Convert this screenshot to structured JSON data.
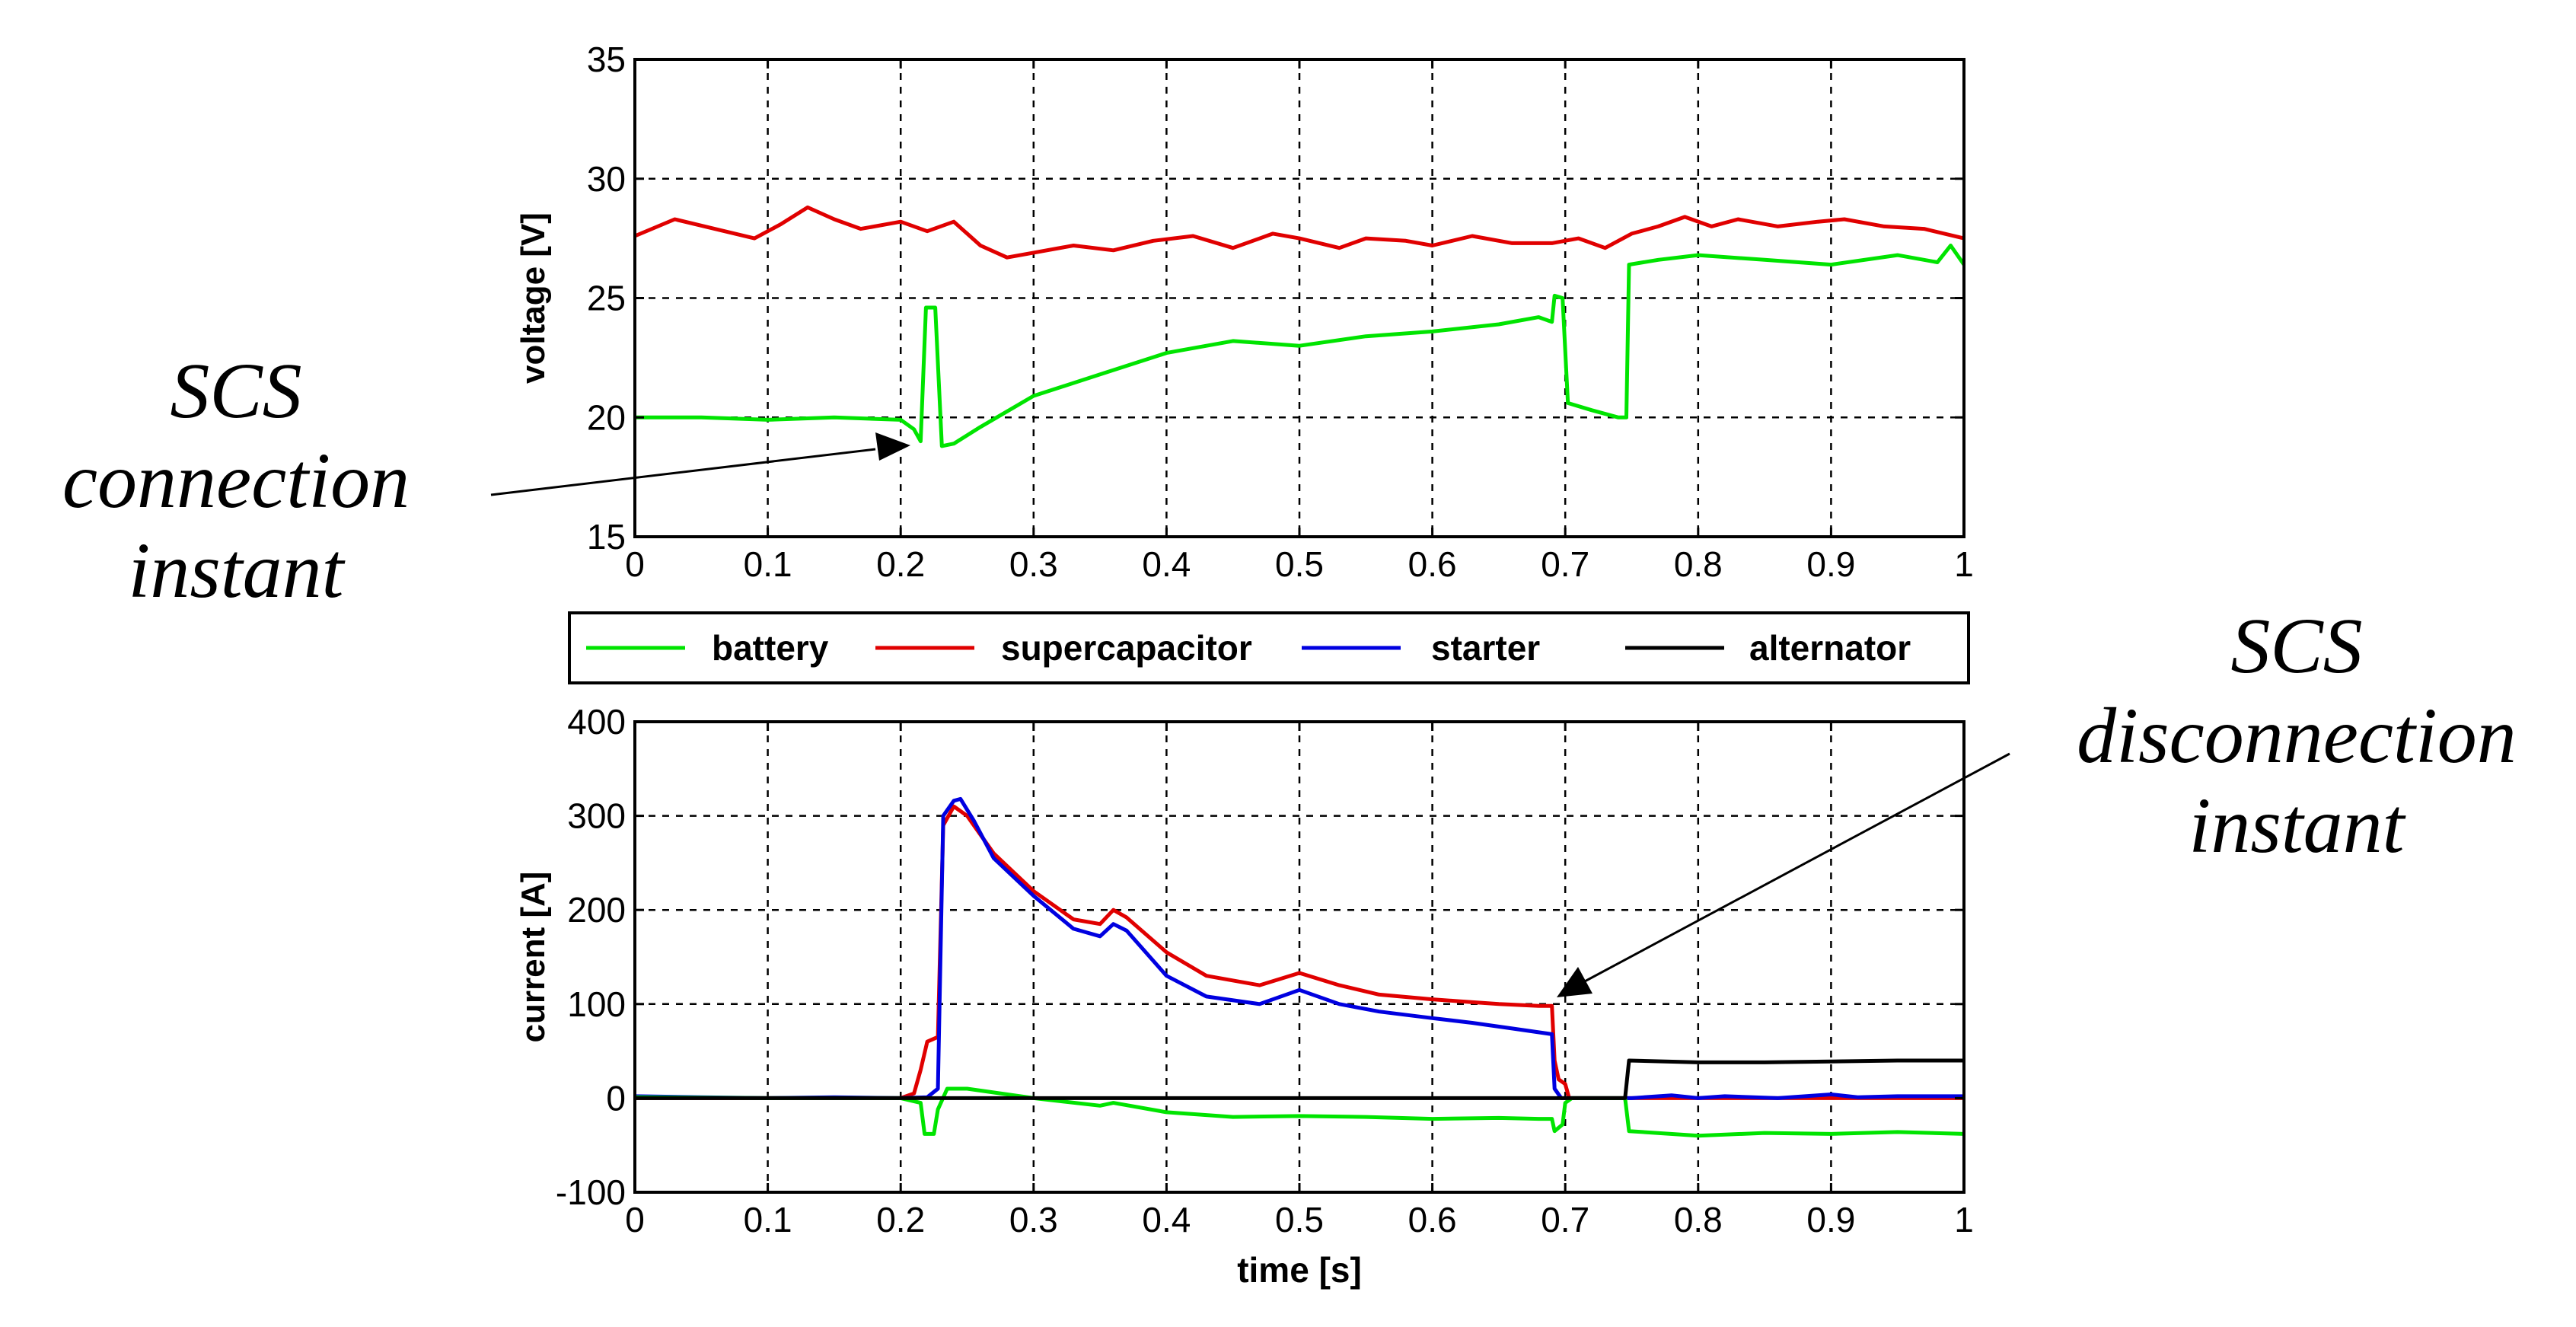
{
  "annotations": {
    "connection": {
      "line1": "SCS",
      "line2": "connection",
      "line3": "instant"
    },
    "disconnection": {
      "line1": "SCS",
      "line2": "disconnection",
      "line3": "instant"
    }
  },
  "legend": {
    "entries": [
      {
        "name": "battery",
        "color": "#00e400"
      },
      {
        "name": "supercapacitor",
        "color": "#e00000"
      },
      {
        "name": "starter",
        "color": "#0000e0"
      },
      {
        "name": "alternator",
        "color": "#000000"
      }
    ]
  },
  "chart_data": [
    {
      "type": "line",
      "ylabel": "voltage [V]",
      "xlabel": "",
      "xlim": [
        0,
        1
      ],
      "ylim": [
        15,
        35
      ],
      "xticks": [
        "0",
        "0.1",
        "0.2",
        "0.3",
        "0.4",
        "0.5",
        "0.6",
        "0.7",
        "0.8",
        "0.9",
        "1"
      ],
      "yticks": [
        "15",
        "20",
        "25",
        "30",
        "35"
      ],
      "grid": true,
      "series": [
        {
          "name": "supercapacitor",
          "color": "#e00000",
          "points": [
            [
              0,
              27.6
            ],
            [
              0.03,
              28.3
            ],
            [
              0.06,
              27.9
            ],
            [
              0.09,
              27.5
            ],
            [
              0.11,
              28.1
            ],
            [
              0.13,
              28.8
            ],
            [
              0.15,
              28.3
            ],
            [
              0.17,
              27.9
            ],
            [
              0.2,
              28.2
            ],
            [
              0.22,
              27.8
            ],
            [
              0.24,
              28.2
            ],
            [
              0.26,
              27.2
            ],
            [
              0.28,
              26.7
            ],
            [
              0.3,
              26.9
            ],
            [
              0.33,
              27.2
            ],
            [
              0.36,
              27.0
            ],
            [
              0.39,
              27.4
            ],
            [
              0.42,
              27.6
            ],
            [
              0.45,
              27.1
            ],
            [
              0.48,
              27.7
            ],
            [
              0.5,
              27.5
            ],
            [
              0.53,
              27.1
            ],
            [
              0.55,
              27.5
            ],
            [
              0.58,
              27.4
            ],
            [
              0.6,
              27.2
            ],
            [
              0.63,
              27.6
            ],
            [
              0.66,
              27.3
            ],
            [
              0.69,
              27.3
            ],
            [
              0.71,
              27.5
            ],
            [
              0.73,
              27.1
            ],
            [
              0.75,
              27.7
            ],
            [
              0.77,
              28.0
            ],
            [
              0.79,
              28.4
            ],
            [
              0.81,
              28.0
            ],
            [
              0.83,
              28.3
            ],
            [
              0.86,
              28.0
            ],
            [
              0.89,
              28.2
            ],
            [
              0.91,
              28.3
            ],
            [
              0.94,
              28.0
            ],
            [
              0.97,
              27.9
            ],
            [
              1,
              27.5
            ]
          ]
        },
        {
          "name": "battery",
          "color": "#00e400",
          "points": [
            [
              0,
              20.0
            ],
            [
              0.05,
              20.0
            ],
            [
              0.1,
              19.9
            ],
            [
              0.15,
              20.0
            ],
            [
              0.2,
              19.9
            ],
            [
              0.21,
              19.5
            ],
            [
              0.215,
              19.0
            ],
            [
              0.219,
              24.6
            ],
            [
              0.226,
              24.6
            ],
            [
              0.231,
              18.8
            ],
            [
              0.24,
              18.9
            ],
            [
              0.26,
              19.6
            ],
            [
              0.3,
              20.9
            ],
            [
              0.35,
              21.8
            ],
            [
              0.4,
              22.7
            ],
            [
              0.45,
              23.2
            ],
            [
              0.5,
              23.0
            ],
            [
              0.55,
              23.4
            ],
            [
              0.6,
              23.6
            ],
            [
              0.65,
              23.9
            ],
            [
              0.68,
              24.2
            ],
            [
              0.69,
              24.0
            ],
            [
              0.692,
              25.1
            ],
            [
              0.698,
              25.0
            ],
            [
              0.702,
              20.6
            ],
            [
              0.72,
              20.3
            ],
            [
              0.74,
              20.0
            ],
            [
              0.746,
              20.0
            ],
            [
              0.748,
              26.4
            ],
            [
              0.77,
              26.6
            ],
            [
              0.8,
              26.8
            ],
            [
              0.85,
              26.6
            ],
            [
              0.9,
              26.4
            ],
            [
              0.95,
              26.8
            ],
            [
              0.98,
              26.5
            ],
            [
              0.99,
              27.2
            ],
            [
              1,
              26.4
            ]
          ]
        }
      ]
    },
    {
      "type": "line",
      "ylabel": "current [A]",
      "xlabel": "time [s]",
      "xlim": [
        0,
        1
      ],
      "ylim": [
        -100,
        400
      ],
      "xticks": [
        "0",
        "0.1",
        "0.2",
        "0.3",
        "0.4",
        "0.5",
        "0.6",
        "0.7",
        "0.8",
        "0.9",
        "1"
      ],
      "yticks": [
        "-100",
        "0",
        "100",
        "200",
        "300",
        "400"
      ],
      "grid": true,
      "series": [
        {
          "name": "supercapacitor",
          "color": "#e00000",
          "points": [
            [
              0,
              0
            ],
            [
              0.2,
              0
            ],
            [
              0.21,
              5
            ],
            [
              0.215,
              30
            ],
            [
              0.22,
              60
            ],
            [
              0.228,
              65
            ],
            [
              0.232,
              290
            ],
            [
              0.24,
              310
            ],
            [
              0.25,
              300
            ],
            [
              0.27,
              260
            ],
            [
              0.3,
              220
            ],
            [
              0.33,
              190
            ],
            [
              0.35,
              185
            ],
            [
              0.36,
              200
            ],
            [
              0.37,
              192
            ],
            [
              0.4,
              155
            ],
            [
              0.43,
              130
            ],
            [
              0.47,
              120
            ],
            [
              0.5,
              133
            ],
            [
              0.53,
              120
            ],
            [
              0.56,
              110
            ],
            [
              0.6,
              105
            ],
            [
              0.62,
              103
            ],
            [
              0.65,
              100
            ],
            [
              0.68,
              98
            ],
            [
              0.69,
              98
            ],
            [
              0.692,
              40
            ],
            [
              0.695,
              20
            ],
            [
              0.7,
              15
            ],
            [
              0.703,
              0
            ],
            [
              1,
              0
            ]
          ]
        },
        {
          "name": "starter",
          "color": "#0000e0",
          "points": [
            [
              0,
              2
            ],
            [
              0.05,
              1
            ],
            [
              0.1,
              0
            ],
            [
              0.15,
              1
            ],
            [
              0.2,
              0
            ],
            [
              0.22,
              1
            ],
            [
              0.228,
              10
            ],
            [
              0.232,
              300
            ],
            [
              0.24,
              316
            ],
            [
              0.245,
              318
            ],
            [
              0.255,
              295
            ],
            [
              0.27,
              255
            ],
            [
              0.3,
              215
            ],
            [
              0.33,
              180
            ],
            [
              0.35,
              172
            ],
            [
              0.36,
              185
            ],
            [
              0.37,
              178
            ],
            [
              0.4,
              130
            ],
            [
              0.43,
              108
            ],
            [
              0.47,
              100
            ],
            [
              0.5,
              115
            ],
            [
              0.53,
              100
            ],
            [
              0.56,
              92
            ],
            [
              0.6,
              85
            ],
            [
              0.63,
              80
            ],
            [
              0.66,
              74
            ],
            [
              0.69,
              68
            ],
            [
              0.692,
              10
            ],
            [
              0.697,
              0
            ],
            [
              0.75,
              0
            ],
            [
              0.78,
              3
            ],
            [
              0.8,
              0
            ],
            [
              0.82,
              2
            ],
            [
              0.86,
              0
            ],
            [
              0.9,
              4
            ],
            [
              0.92,
              1
            ],
            [
              0.95,
              2
            ],
            [
              1,
              2
            ]
          ]
        },
        {
          "name": "battery",
          "color": "#00e400",
          "points": [
            [
              0,
              1
            ],
            [
              0.1,
              0
            ],
            [
              0.2,
              0
            ],
            [
              0.215,
              -5
            ],
            [
              0.218,
              -38
            ],
            [
              0.225,
              -38
            ],
            [
              0.228,
              -12
            ],
            [
              0.235,
              10
            ],
            [
              0.25,
              10
            ],
            [
              0.3,
              0
            ],
            [
              0.35,
              -8
            ],
            [
              0.36,
              -5
            ],
            [
              0.4,
              -15
            ],
            [
              0.45,
              -20
            ],
            [
              0.5,
              -19
            ],
            [
              0.55,
              -20
            ],
            [
              0.6,
              -22
            ],
            [
              0.65,
              -21
            ],
            [
              0.68,
              -22
            ],
            [
              0.69,
              -22
            ],
            [
              0.692,
              -35
            ],
            [
              0.698,
              -28
            ],
            [
              0.7,
              -5
            ],
            [
              0.705,
              0
            ],
            [
              0.745,
              0
            ],
            [
              0.748,
              -35
            ],
            [
              0.8,
              -40
            ],
            [
              0.85,
              -37
            ],
            [
              0.9,
              -38
            ],
            [
              0.95,
              -36
            ],
            [
              1,
              -38
            ]
          ]
        },
        {
          "name": "alternator",
          "color": "#000000",
          "points": [
            [
              0,
              0
            ],
            [
              0.745,
              0
            ],
            [
              0.748,
              40
            ],
            [
              0.8,
              38
            ],
            [
              0.85,
              38
            ],
            [
              0.9,
              39
            ],
            [
              0.95,
              40
            ],
            [
              1,
              40
            ]
          ]
        }
      ]
    }
  ]
}
